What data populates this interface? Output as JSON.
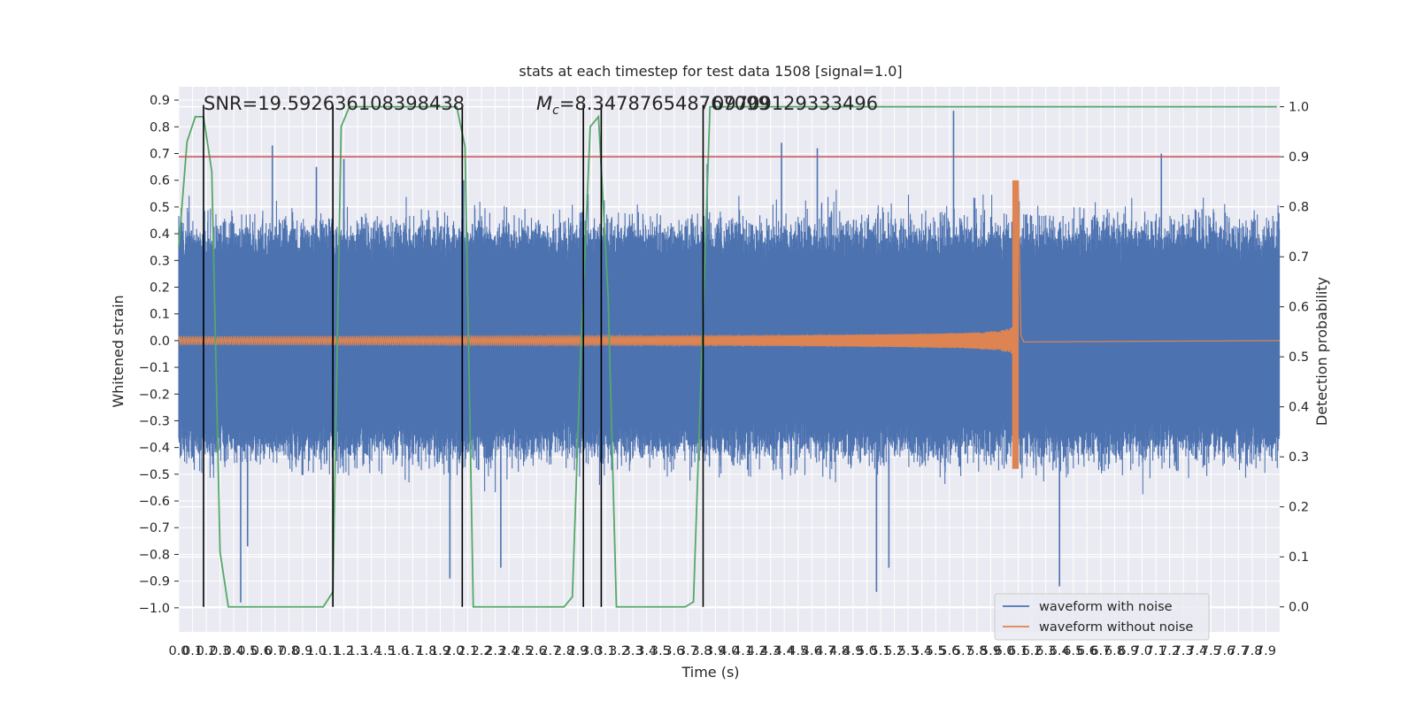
{
  "chart_data": {
    "type": "line",
    "title": "stats at each timestep for test data 1508 [signal=1.0]",
    "xlabel": "Time (s)",
    "ylabel": "Whitened strain",
    "y2label": "Detection probability",
    "xlim": [
      0.0,
      8.0
    ],
    "ylim": [
      -1.09,
      0.95
    ],
    "y2lim": [
      -0.05,
      1.04
    ],
    "x_ticks": [
      "0.0",
      "0.1",
      "0.2",
      "0.3",
      "0.4",
      "0.5",
      "0.6",
      "0.7",
      "0.8",
      "0.9",
      "1.0",
      "1.1",
      "1.2",
      "1.3",
      "1.4",
      "1.5",
      "1.6",
      "1.7",
      "1.8",
      "1.9",
      "2.0",
      "2.1",
      "2.2",
      "2.3",
      "2.4",
      "2.5",
      "2.6",
      "2.7",
      "2.8",
      "2.9",
      "3.0",
      "3.1",
      "3.2",
      "3.3",
      "3.4",
      "3.5",
      "3.6",
      "3.7",
      "3.8",
      "3.9",
      "4.0",
      "4.1",
      "4.2",
      "4.3",
      "4.4",
      "4.5",
      "4.6",
      "4.7",
      "4.8",
      "4.9",
      "5.0",
      "5.1",
      "5.2",
      "5.3",
      "5.4",
      "5.5",
      "5.6",
      "5.7",
      "5.8",
      "5.9",
      "6.0",
      "6.1",
      "6.2",
      "6.3",
      "6.4",
      "6.5",
      "6.6",
      "6.7",
      "6.8",
      "6.9",
      "7.0",
      "7.1",
      "7.2",
      "7.3",
      "7.4",
      "7.5",
      "7.6",
      "7.7",
      "7.8",
      "7.9"
    ],
    "y_ticks": [
      "0.9",
      "0.8",
      "0.7",
      "0.6",
      "0.5",
      "0.4",
      "0.3",
      "0.2",
      "0.1",
      "0.0",
      "−0.1",
      "−0.2",
      "−0.3",
      "−0.4",
      "−0.5",
      "−0.6",
      "−0.7",
      "−0.8",
      "−0.9",
      "−1.0"
    ],
    "y2_ticks": [
      "1.0",
      "0.9",
      "0.8",
      "0.7",
      "0.6",
      "0.5",
      "0.4",
      "0.3",
      "0.2",
      "0.1",
      "0.0"
    ],
    "annotations": {
      "snr": "SNR=19.592636108398438",
      "mc_symbol": "M",
      "mc_sub": "c",
      "mc_value": "=8.347876548767099",
      "mc_overlap": "09709129333496"
    },
    "threshold_probability": 0.9,
    "vertical_lines_x": [
      0.18,
      1.12,
      2.06,
      2.94,
      3.07,
      3.81
    ],
    "series": [
      {
        "name": "waveform with noise",
        "color": "#4c72b0",
        "noise_envelope": [
          0.28,
          0.38
        ],
        "spikes": [
          {
            "x": 0.45,
            "y": -0.98
          },
          {
            "x": 0.5,
            "y": -0.77
          },
          {
            "x": 0.68,
            "y": 0.73
          },
          {
            "x": 1.0,
            "y": 0.65
          },
          {
            "x": 1.2,
            "y": 0.68
          },
          {
            "x": 1.97,
            "y": -0.89
          },
          {
            "x": 2.07,
            "y": 0.6
          },
          {
            "x": 2.34,
            "y": -0.85
          },
          {
            "x": 3.84,
            "y": 0.66
          },
          {
            "x": 4.38,
            "y": 0.74
          },
          {
            "x": 4.64,
            "y": 0.72
          },
          {
            "x": 5.07,
            "y": -0.94
          },
          {
            "x": 5.16,
            "y": -0.85
          },
          {
            "x": 5.63,
            "y": 0.86
          },
          {
            "x": 6.4,
            "y": -0.92
          },
          {
            "x": 7.14,
            "y": 0.7
          }
        ]
      },
      {
        "name": "waveform without noise",
        "color": "#dd8452",
        "base_amplitude": 0.02,
        "merger_time": 6.1,
        "merger_peak": 0.6,
        "merger_trough": -0.48
      },
      {
        "name": "detection probability",
        "color": "#55a868",
        "x": [
          0.0,
          0.06,
          0.12,
          0.18,
          0.24,
          0.3,
          0.36,
          0.42,
          1.05,
          1.12,
          1.18,
          1.24,
          2.02,
          2.08,
          2.14,
          2.2,
          2.8,
          2.86,
          2.92,
          2.99,
          3.05,
          3.12,
          3.18,
          3.26,
          3.68,
          3.74,
          3.8,
          3.86,
          7.98
        ],
        "y": [
          0.72,
          0.93,
          0.98,
          0.98,
          0.87,
          0.11,
          0.0,
          0.0,
          0.0,
          0.03,
          0.96,
          1.0,
          1.0,
          0.92,
          0.0,
          0.0,
          0.0,
          0.02,
          0.5,
          0.96,
          0.98,
          0.62,
          0.0,
          0.0,
          0.0,
          0.01,
          0.5,
          1.0,
          1.0
        ]
      }
    ],
    "legend": {
      "placement": "bottom-right",
      "entries": [
        {
          "label": "waveform with noise",
          "color": "#4c72b0"
        },
        {
          "label": "waveform without noise",
          "color": "#dd8452"
        }
      ]
    },
    "colors": {
      "background": "#eaeaf2",
      "grid": "#ffffff",
      "threshold": "#c44e52",
      "vlines": "#000000"
    }
  }
}
